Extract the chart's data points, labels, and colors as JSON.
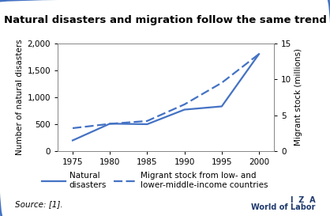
{
  "title": "Natural disasters and migration follow the same trend",
  "years": [
    1975,
    1980,
    1985,
    1990,
    1995,
    2000
  ],
  "natural_disasters": [
    200,
    510,
    500,
    770,
    830,
    1800
  ],
  "migrant_stock": [
    3.2,
    3.8,
    4.2,
    6.5,
    9.5,
    13.5
  ],
  "left_ylim": [
    0,
    2000
  ],
  "right_ylim": [
    0,
    15
  ],
  "left_yticks": [
    0,
    500,
    1000,
    1500,
    2000
  ],
  "right_yticks": [
    0,
    5,
    10,
    15
  ],
  "xticks": [
    1975,
    1980,
    1985,
    1990,
    1995,
    2000
  ],
  "ylabel_left": "Number of natural disasters",
  "ylabel_right": "Migrant stock (millions)",
  "line_color": "#4472c4",
  "source_text": "Source: [1].",
  "legend_label1": "Natural\ndisasters",
  "legend_label2": "Migrant stock from low- and\nlower-middle-income countries",
  "border_color": "#4472c4",
  "background_color": "#ffffff",
  "iza_line1": "I  Z  A",
  "iza_line2": "World of Labor",
  "iza_color": "#1f3a6e"
}
